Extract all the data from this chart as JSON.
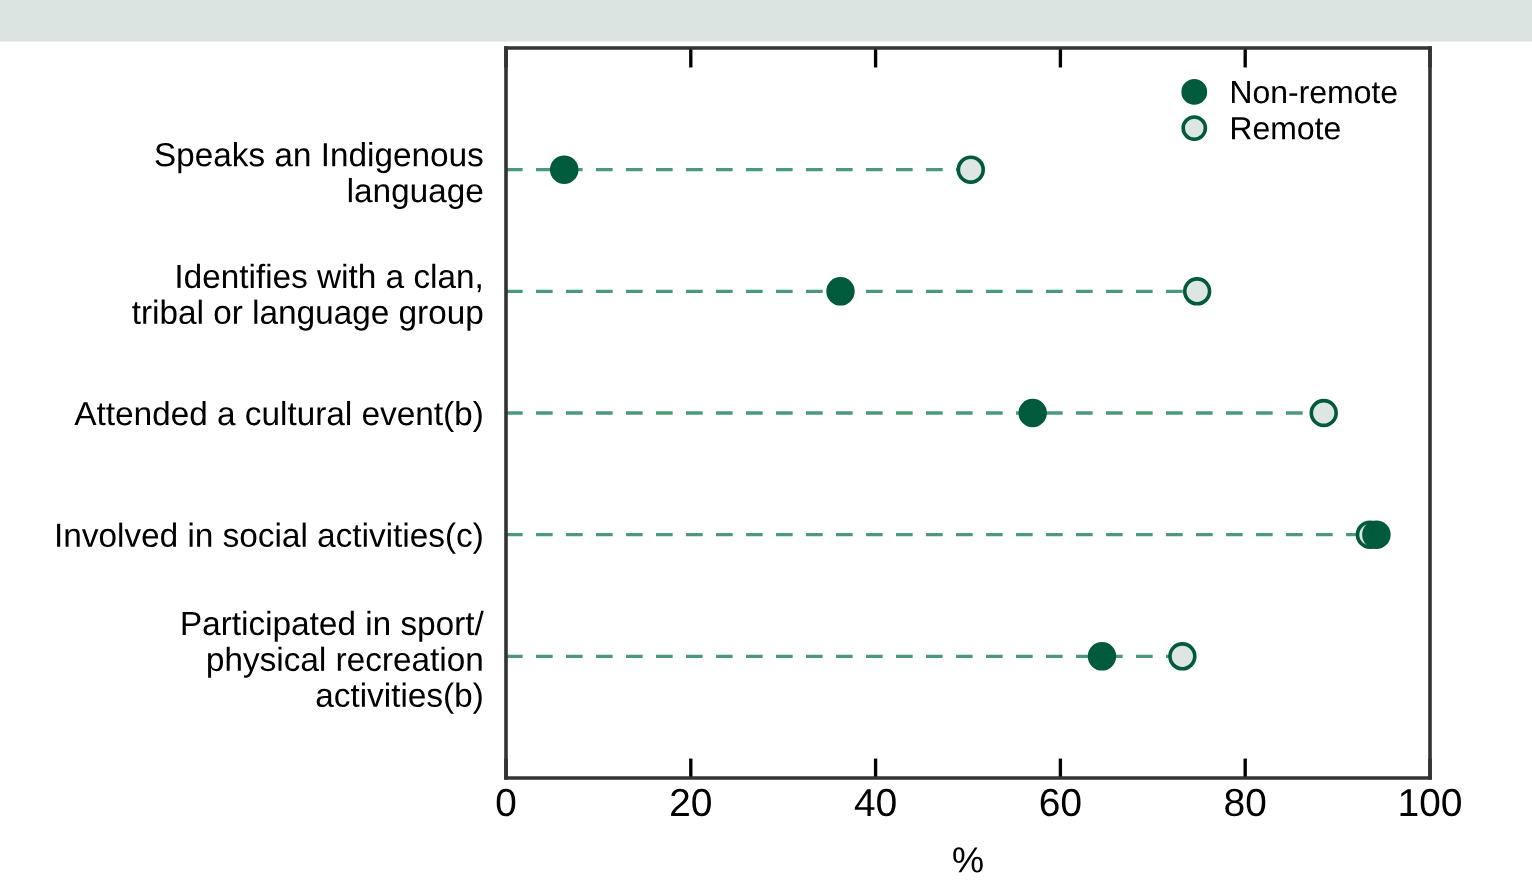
{
  "chart_data": {
    "type": "scatter",
    "orientation": "horizontal",
    "xlabel": "%",
    "categories": [
      "Speaks an Indigenous\nlanguage",
      "Identifies with a clan,\ntribal or language group",
      "Attended a cultural event(b)",
      "Involved in social activities(c)",
      "Participated in sport/\nphysical recreation\nactivities(b)"
    ],
    "series": [
      {
        "name": "Non-remote",
        "color": "#005a3c",
        "values": [
          6.3,
          36.2,
          57.0,
          94.2,
          64.5
        ]
      },
      {
        "name": "Remote",
        "color": "#dde6e2",
        "values": [
          50.3,
          74.8,
          88.5,
          93.5,
          73.2
        ]
      }
    ],
    "xlim": [
      0,
      100
    ],
    "xticks": [
      0,
      20,
      40,
      60,
      80,
      100
    ],
    "marker": "circle",
    "line_style": "dashed",
    "legend": "top right",
    "grid": "y"
  }
}
